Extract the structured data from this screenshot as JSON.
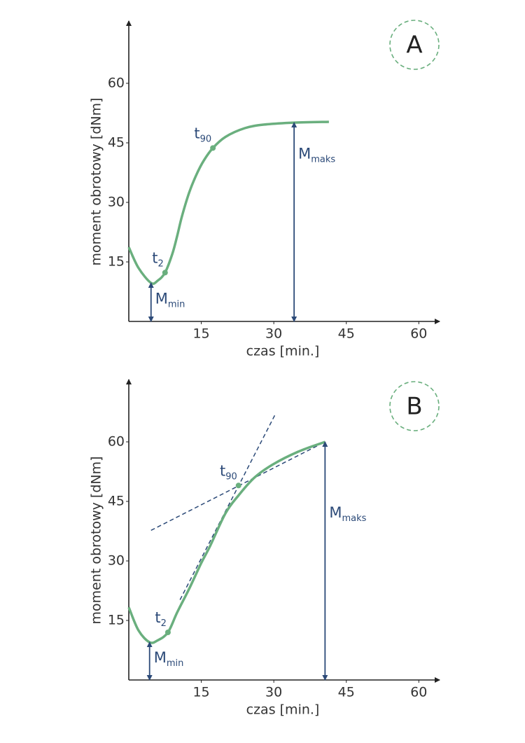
{
  "chart_data": [
    {
      "type": "line",
      "panel": "A",
      "xlabel": "czas [min.]",
      "ylabel": "moment obrotowy [dNm]",
      "xlim": [
        0,
        64.3
      ],
      "ylim": [
        0,
        75.7
      ],
      "xticks": [
        15,
        30,
        45,
        60
      ],
      "yticks": [
        15,
        30,
        45,
        60
      ],
      "series": [
        {
          "color": "#6aaf7e",
          "x": [
            0,
            2,
            4.6,
            6,
            7.5,
            9,
            10,
            11,
            12.5,
            14,
            15.5,
            17.4,
            20,
            24,
            28,
            34.2,
            41.4
          ],
          "values": [
            18.7,
            13.5,
            9.7,
            10.3,
            12.3,
            17,
            21.5,
            26.5,
            32.5,
            37,
            40.5,
            43.7,
            46.5,
            48.7,
            49.6,
            50.1,
            50.3
          ]
        }
      ],
      "points": [
        {
          "label": "t",
          "sub": "2",
          "x": 7.5,
          "y": 12.3
        },
        {
          "label": "t",
          "sub": "90",
          "x": 17.4,
          "y": 43.7
        }
      ],
      "arrows": [
        {
          "label": "M",
          "sub": "min",
          "x": 4.6,
          "y": 9.7
        },
        {
          "label": "M",
          "sub": "maks",
          "x": 34.2,
          "y": 50.1
        }
      ]
    },
    {
      "type": "line",
      "panel": "B",
      "xlabel": "czas [min.]",
      "ylabel": "moment obrotowy [dNm]",
      "xlim": [
        0,
        64.3
      ],
      "ylim": [
        0,
        75.7
      ],
      "xticks": [
        15,
        30,
        45,
        60
      ],
      "yticks": [
        15,
        30,
        45,
        60
      ],
      "series": [
        {
          "color": "#6aaf7e",
          "x": [
            0,
            2,
            4.3,
            6,
            8.1,
            10,
            12.5,
            15,
            16.8,
            20,
            22.7,
            26,
            29.8,
            35,
            40.6
          ],
          "values": [
            18.3,
            12.5,
            9.5,
            10,
            12,
            17,
            23,
            29.5,
            33.7,
            42,
            46.5,
            51,
            54.3,
            57.5,
            60
          ]
        }
      ],
      "tangents": [
        {
          "x": [
            10.6,
            30.2
          ],
          "values": [
            20.2,
            66.7
          ]
        },
        {
          "x": [
            4.6,
            40.6
          ],
          "values": [
            37.7,
            60
          ]
        }
      ],
      "points": [
        {
          "label": "t",
          "sub": "2",
          "x": 8.1,
          "y": 12
        },
        {
          "label": "t",
          "sub": "90",
          "x": 22.7,
          "y": 49
        }
      ],
      "arrows": [
        {
          "label": "M",
          "sub": "min",
          "x": 4.3,
          "y": 9.5
        },
        {
          "label": "M",
          "sub": "maks",
          "x": 40.6,
          "y": 60
        }
      ]
    }
  ]
}
